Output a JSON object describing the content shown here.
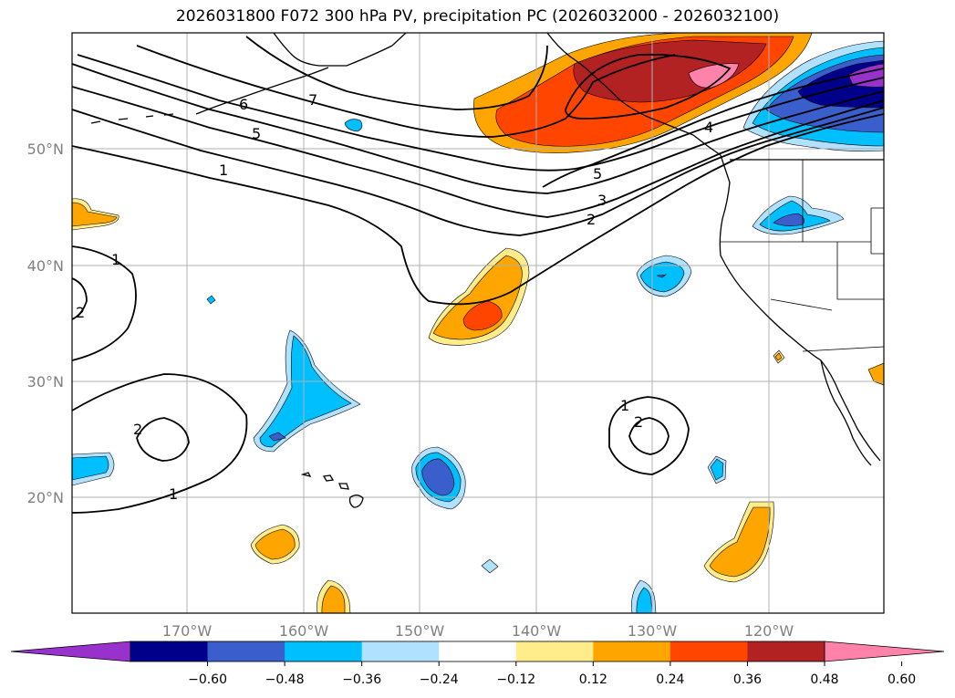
{
  "title": "2026031800 F072 300 hPa PV, precipitation PC (2026032000 - 2026032100)",
  "lat_labels": [
    "50°N",
    "40°N",
    "30°N",
    "20°N"
  ],
  "lon_labels": [
    "170°W",
    "160°W",
    "150°W",
    "140°W",
    "130°W",
    "120°W"
  ],
  "contour_labels": [
    "1",
    "1",
    "1",
    "1",
    "2",
    "2",
    "2",
    "2",
    "3",
    "4",
    "5",
    "5",
    "6",
    "7"
  ],
  "colorbar": {
    "ticks": [
      "−0.60",
      "−0.48",
      "−0.36",
      "−0.24",
      "−0.12",
      "0.12",
      "0.24",
      "0.36",
      "0.48",
      "0.60"
    ],
    "colors": [
      "#9932cc",
      "#00008b",
      "#3a5fcd",
      "#00bfff",
      "#b0e2ff",
      "#ffffff",
      "#ffec8b",
      "#ffa500",
      "#ff4500",
      "#b22222",
      "#ff82ab"
    ]
  }
}
